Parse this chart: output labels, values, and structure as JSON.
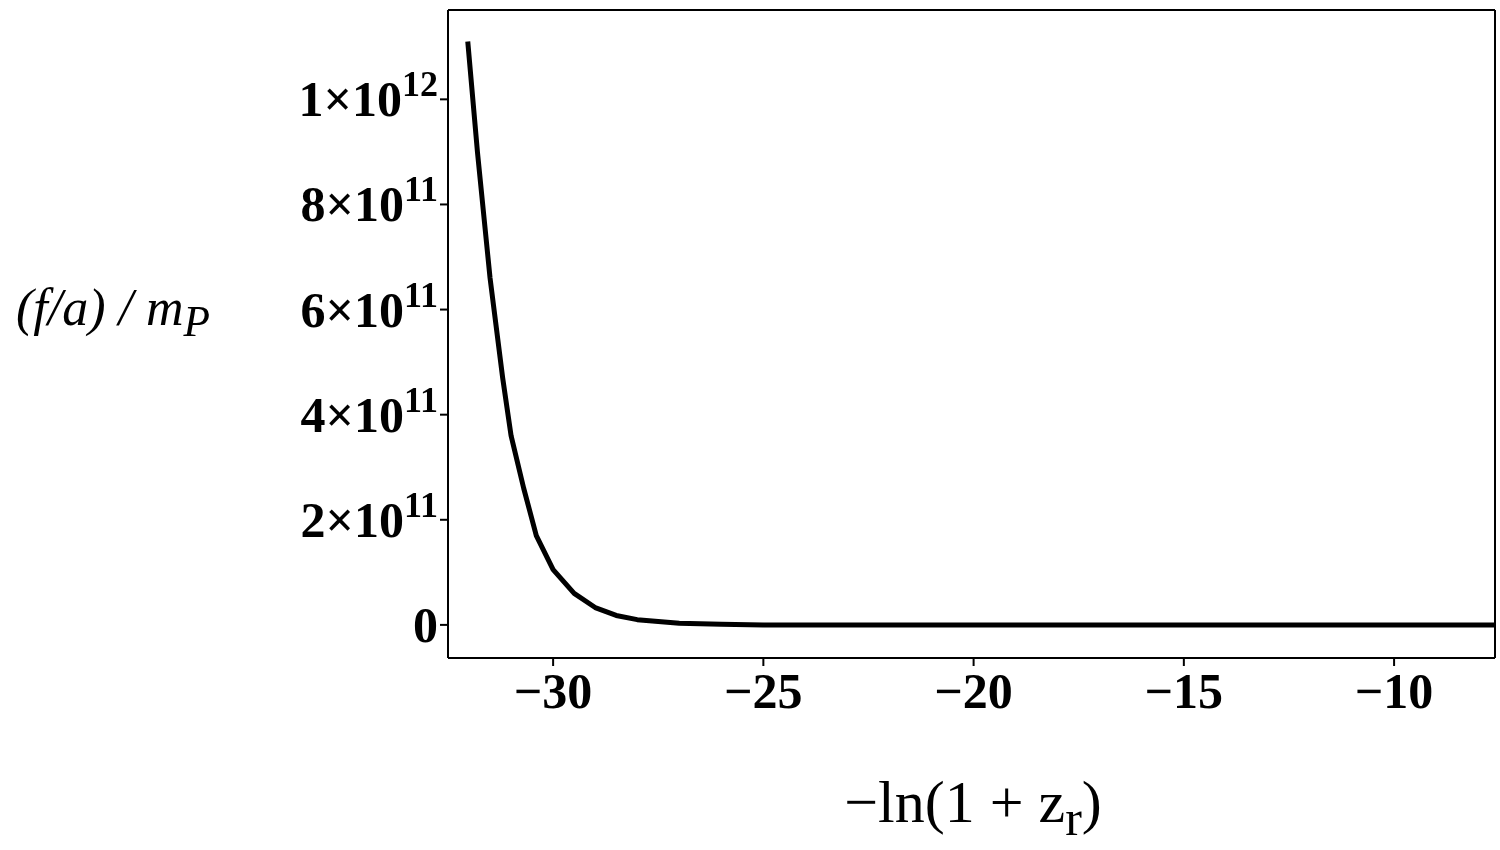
{
  "chart_data": {
    "type": "line",
    "xlabel": "−ln(1 + z$_{r}$)",
    "ylabel": "(f/a) / m$_{P}$",
    "x": [
      -32.03,
      -31.8,
      -31.5,
      -31.2,
      -31.0,
      -30.7,
      -30.4,
      -30.0,
      -29.5,
      -29.0,
      -28.5,
      -28.0,
      -27.0,
      -26.0,
      -25.0,
      -20.0,
      -15.0,
      -10.0,
      -7.6
    ],
    "series": [
      {
        "color": "#000000",
        "values": [
          1110000000000.0,
          900000000000.0,
          660000000000.0,
          470000000000.0,
          360000000000.0,
          260000000000.0,
          170000000000.0,
          105000000000.0,
          60000000000.0,
          33000000000.0,
          18000000000.0,
          10000000000.0,
          3000000000.0,
          1000000000.0,
          0,
          0,
          0,
          0,
          0
        ]
      }
    ],
    "xlim": [
      -32.5,
      -7.6
    ],
    "xticks": [
      {
        "value": -30,
        "label": "−30"
      },
      {
        "value": -25,
        "label": "−25"
      },
      {
        "value": -20,
        "label": "−20"
      },
      {
        "value": -15,
        "label": "−15"
      },
      {
        "value": -10,
        "label": "−10"
      }
    ],
    "ylim": [
      -63000000000.0,
      1170000000000.0
    ],
    "yticks": [
      0,
      {
        "value": 200000000000.0,
        "label": "2×10$^{11}$"
      },
      {
        "value": 400000000000.0,
        "label": "4×10$^{11}$"
      },
      {
        "value": 600000000000.0,
        "label": "6×10$^{11}$"
      },
      {
        "value": 800000000000.0,
        "label": "8×10$^{11}$"
      },
      {
        "value": 1000000000000.0,
        "label": "1×10$^{12}$"
      }
    ],
    "grid": false,
    "legend": false,
    "marker": "none",
    "line_style": "solid"
  }
}
